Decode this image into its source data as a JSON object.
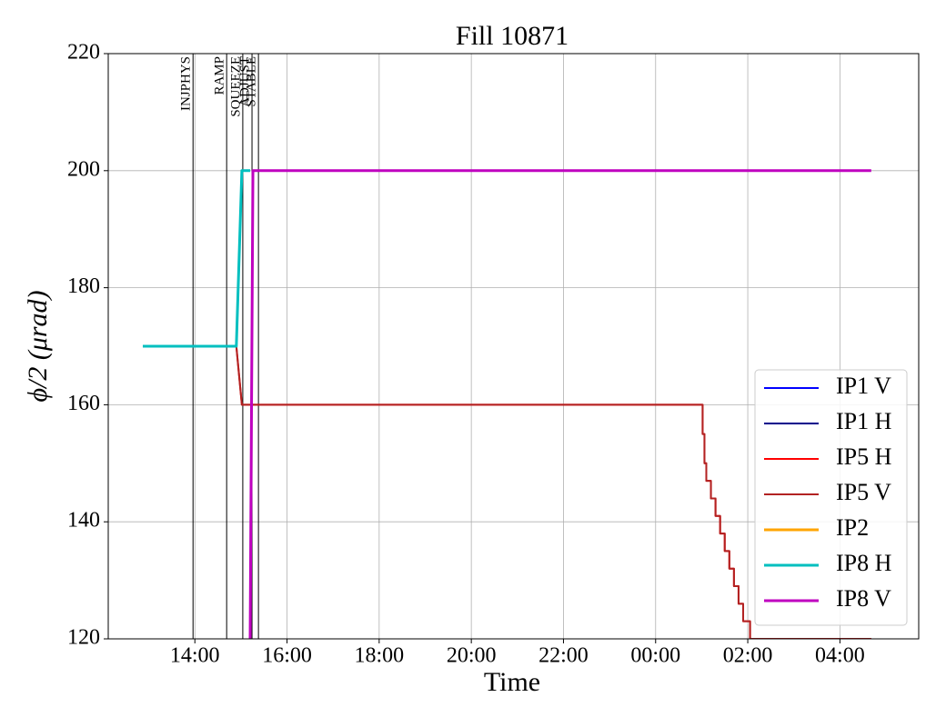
{
  "chart_data": {
    "type": "line",
    "title": "Fill 10871",
    "xlabel": "Time",
    "ylabel": "ϕ/2 (μrad)",
    "xlim": [
      12.12,
      29.71
    ],
    "ylim": [
      120,
      220
    ],
    "xticks": [
      {
        "value": 14,
        "label": "14:00"
      },
      {
        "value": 16,
        "label": "16:00"
      },
      {
        "value": 18,
        "label": "18:00"
      },
      {
        "value": 20,
        "label": "20:00"
      },
      {
        "value": 22,
        "label": "22:00"
      },
      {
        "value": 24,
        "label": "00:00"
      },
      {
        "value": 26,
        "label": "02:00"
      },
      {
        "value": 28,
        "label": "04:00"
      }
    ],
    "yticks": [
      120,
      140,
      160,
      180,
      200,
      220
    ],
    "grid": true,
    "legend": "lower right",
    "modes": [
      {
        "name": "INJPHYS",
        "x": 13.96
      },
      {
        "name": "RAMP",
        "x": 14.69
      },
      {
        "name": "SQUEEZE",
        "x": 15.04
      },
      {
        "name": "ADJUST",
        "x": 15.24
      },
      {
        "name": "STABLE",
        "x": 15.38
      }
    ],
    "series": [
      {
        "name": "IP1 V",
        "color": "#0000ff",
        "width": 2,
        "x": [],
        "values": []
      },
      {
        "name": "IP1 H",
        "color": "#00008b",
        "width": 2,
        "x": [],
        "values": []
      },
      {
        "name": "IP5 H",
        "color": "#ff0000",
        "width": 2,
        "x": [
          12.87,
          14.9,
          15.02,
          25.02,
          25.02,
          25.06,
          25.06,
          25.1,
          25.1,
          25.2,
          25.2,
          25.3,
          25.3,
          25.4,
          25.4,
          25.5,
          25.5,
          25.6,
          25.6,
          25.7,
          25.7,
          25.8,
          25.8,
          25.9,
          25.9,
          26.05,
          26.05,
          28.68
        ],
        "values": [
          170,
          170,
          160,
          160,
          155,
          155,
          150,
          150,
          147,
          147,
          144,
          144,
          141,
          141,
          138,
          138,
          135,
          135,
          132,
          132,
          129,
          129,
          126,
          126,
          123,
          123,
          120,
          120
        ]
      },
      {
        "name": "IP5 V",
        "color": "#b22222",
        "width": 2,
        "x": [
          12.87,
          14.9,
          15.02,
          25.02,
          25.02,
          25.06,
          25.06,
          25.1,
          25.1,
          25.2,
          25.2,
          25.3,
          25.3,
          25.4,
          25.4,
          25.5,
          25.5,
          25.6,
          25.6,
          25.7,
          25.7,
          25.8,
          25.8,
          25.9,
          25.9,
          26.05,
          26.05,
          28.68
        ],
        "values": [
          170,
          170,
          160,
          160,
          155,
          155,
          150,
          150,
          147,
          147,
          144,
          144,
          141,
          141,
          138,
          138,
          135,
          135,
          132,
          132,
          129,
          129,
          126,
          126,
          123,
          123,
          120,
          120
        ]
      },
      {
        "name": "IP2",
        "color": "#ffa500",
        "width": 3,
        "x": [],
        "values": []
      },
      {
        "name": "IP8 H",
        "color": "#00bfbf",
        "width": 3,
        "x": [
          12.87,
          14.9,
          15.02,
          15.2
        ],
        "values": [
          170,
          170,
          200,
          200
        ]
      },
      {
        "name": "IP8 V",
        "color": "#bf00bf",
        "width": 3,
        "x": [
          15.2,
          15.26,
          28.68
        ],
        "values": [
          120,
          200,
          200
        ]
      }
    ]
  }
}
